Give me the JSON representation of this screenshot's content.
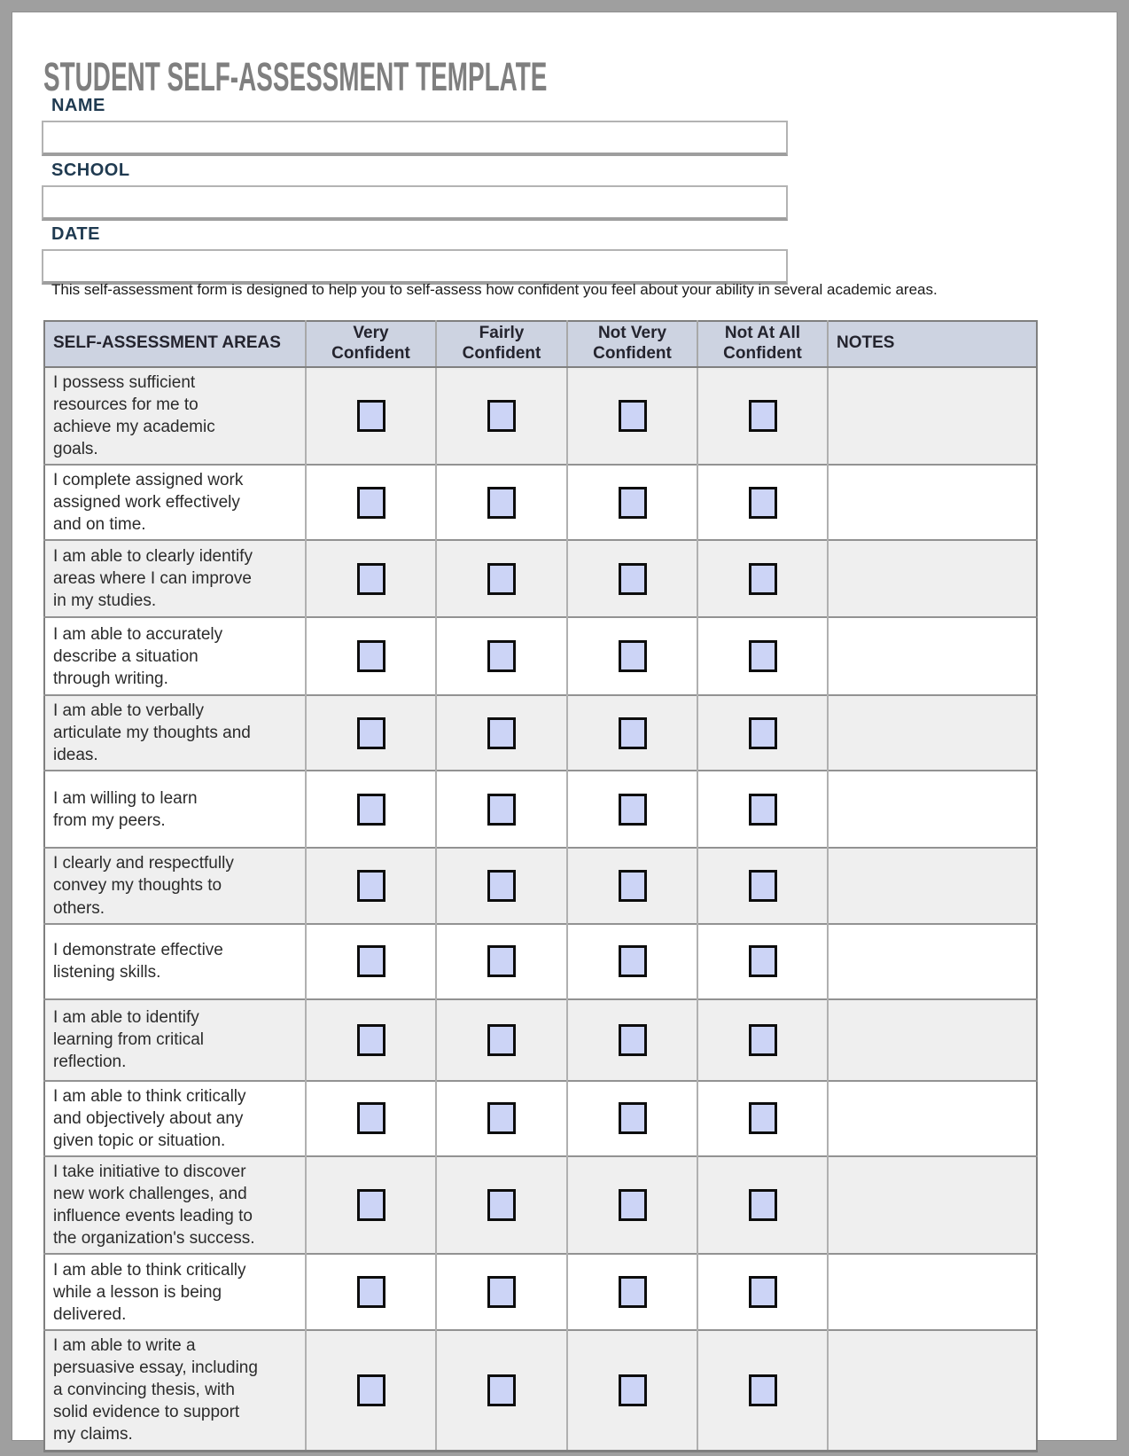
{
  "title": "STUDENT SELF-ASSESSMENT TEMPLATE",
  "fields": [
    {
      "label": "NAME",
      "value": ""
    },
    {
      "label": "SCHOOL",
      "value": ""
    },
    {
      "label": "DATE",
      "value": ""
    }
  ],
  "description": "This self-assessment form is designed to help you to self-assess how confident you feel about your ability in several academic areas.",
  "table": {
    "headers": [
      "SELF-ASSESSMENT AREAS",
      "Very\nConfident",
      "Fairly\nConfident",
      "Not Very\nConfident",
      "Not At All\nConfident",
      "NOTES"
    ],
    "confidence_levels": [
      "Very Confident",
      "Fairly Confident",
      "Not Very Confident",
      "Not At All Confident"
    ],
    "rows": [
      {
        "area": "I possess sufficient\nresources for me to\nachieve my academic\ngoals.",
        "checked": [
          false,
          false,
          false,
          false
        ],
        "notes": ""
      },
      {
        "area": "I complete assigned work\nassigned work effectively\nand on time.",
        "checked": [
          false,
          false,
          false,
          false
        ],
        "notes": ""
      },
      {
        "area": "I am able to clearly identify\nareas where I can improve\nin my studies.",
        "checked": [
          false,
          false,
          false,
          false
        ],
        "notes": ""
      },
      {
        "area": "I am able to accurately\ndescribe a situation\nthrough writing.",
        "checked": [
          false,
          false,
          false,
          false
        ],
        "notes": ""
      },
      {
        "area": "I am able to verbally\narticulate my thoughts and\nideas.",
        "checked": [
          false,
          false,
          false,
          false
        ],
        "notes": ""
      },
      {
        "area": "I am willing to learn\nfrom my peers.",
        "checked": [
          false,
          false,
          false,
          false
        ],
        "notes": ""
      },
      {
        "area": "I clearly and respectfully\nconvey my thoughts to\nothers.",
        "checked": [
          false,
          false,
          false,
          false
        ],
        "notes": ""
      },
      {
        "area": "I demonstrate effective\nlistening skills.",
        "checked": [
          false,
          false,
          false,
          false
        ],
        "notes": ""
      },
      {
        "area": "I am able to identify\nlearning from critical\nreflection.",
        "checked": [
          false,
          false,
          false,
          false
        ],
        "notes": ""
      },
      {
        "area": "I am able to think critically\nand objectively about any\ngiven topic or situation.",
        "checked": [
          false,
          false,
          false,
          false
        ],
        "notes": ""
      },
      {
        "area": "I take initiative to discover\nnew work challenges, and\ninfluence events leading to\nthe organization's success.",
        "checked": [
          false,
          false,
          false,
          false
        ],
        "notes": ""
      },
      {
        "area": "I am able to think critically\nwhile a lesson is being\ndelivered.",
        "checked": [
          false,
          false,
          false,
          false
        ],
        "notes": ""
      },
      {
        "area": "I am able to write a\npersuasive essay, including\na convincing thesis, with\nsolid evidence to support\nmy claims.",
        "checked": [
          false,
          false,
          false,
          false
        ],
        "notes": ""
      }
    ]
  },
  "colors": {
    "title_gray": "#7f7f7f",
    "label_navy": "#1f3a50",
    "header_bg": "#cdd3e1",
    "checkbox_fill": "#ccd4f6",
    "row_shade": "#efefef",
    "frame_gray": "#9f9f9f"
  }
}
